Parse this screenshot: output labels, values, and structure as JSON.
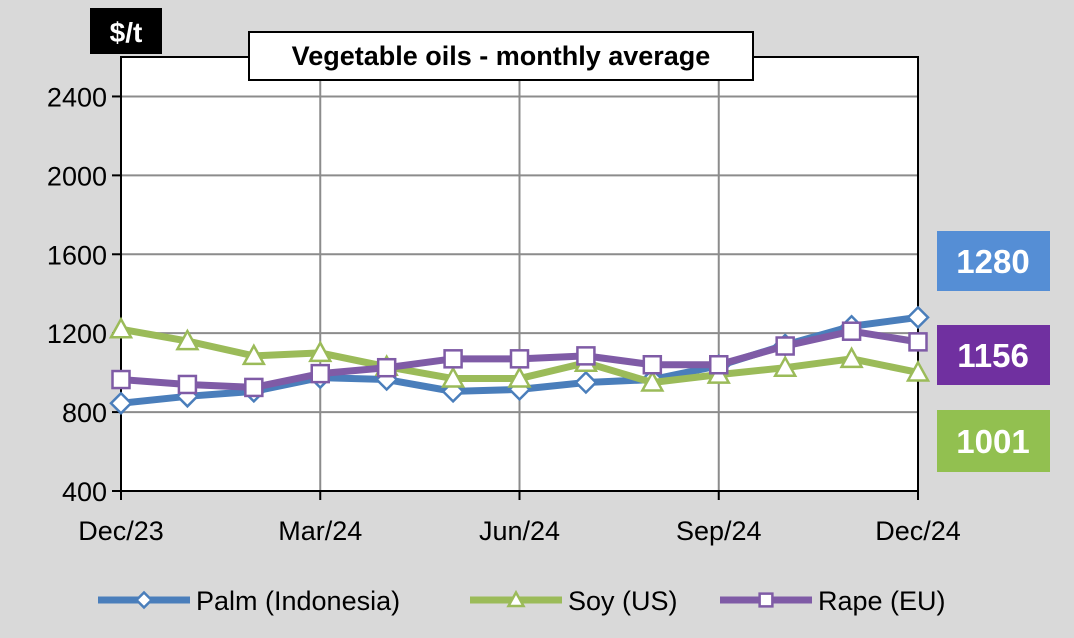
{
  "chart_data": {
    "type": "line",
    "title": "Vegetable oils - monthly average",
    "unit_label": "$/t",
    "x": [
      "Dec/23",
      "Jan/24",
      "Feb/24",
      "Mar/24",
      "Apr/24",
      "May/24",
      "Jun/24",
      "Jul/24",
      "Aug/24",
      "Sep/24",
      "Oct/24",
      "Nov/24",
      "Dec/24"
    ],
    "x_tick_labels": [
      "Dec/23",
      "Mar/24",
      "Jun/24",
      "Sep/24",
      "Dec/24"
    ],
    "y_ticks": [
      400,
      800,
      1200,
      1600,
      2000,
      2400
    ],
    "ylim": [
      400,
      2600
    ],
    "grid": true,
    "legend_position": "bottom",
    "series": [
      {
        "name": "Palm (Indonesia)",
        "color": "#4a7ebb",
        "marker": "diamond",
        "values": [
          845,
          880,
          905,
          975,
          965,
          905,
          915,
          950,
          965,
          1035,
          1140,
          1235,
          1280
        ]
      },
      {
        "name": "Soy (US)",
        "color": "#9bbb59",
        "marker": "triangle",
        "values": [
          1220,
          1160,
          1085,
          1100,
          1030,
          970,
          970,
          1050,
          950,
          990,
          1025,
          1070,
          1001
        ]
      },
      {
        "name": "Rape (EU)",
        "color": "#7f5ba6",
        "marker": "square",
        "values": [
          965,
          940,
          925,
          995,
          1025,
          1070,
          1070,
          1085,
          1040,
          1040,
          1135,
          1210,
          1156
        ]
      }
    ],
    "end_labels": [
      {
        "text": "1280",
        "color": "#558ed5"
      },
      {
        "text": "1156",
        "color": "#7030a0"
      },
      {
        "text": "1001",
        "color": "#92c050"
      }
    ]
  }
}
